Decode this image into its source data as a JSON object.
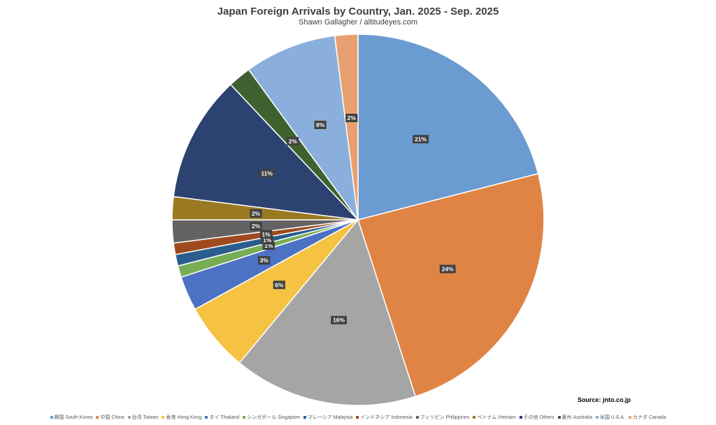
{
  "chart_data": {
    "type": "pie",
    "title": "Japan Foreign Arrivals by Country, Jan. 2025 - Sep. 2025",
    "subtitle": "Shawn Gallagher / altitudeyes.com",
    "source": "Source:  jnto.co.jp",
    "slices": [
      {
        "legend": "韓国 South Korea",
        "value": 21,
        "label": "21%",
        "color": "#6A9BD1"
      },
      {
        "legend": "中国 China",
        "value": 24,
        "label": "24%",
        "color": "#E08445"
      },
      {
        "legend": "台湾 Taiwan",
        "value": 16,
        "label": "16%",
        "color": "#A5A5A5"
      },
      {
        "legend": "香港 Hong Kong",
        "value": 6,
        "label": "6%",
        "color": "#F5C242"
      },
      {
        "legend": "タイ Thailand",
        "value": 3,
        "label": "3%",
        "color": "#4C72C4"
      },
      {
        "legend": "シンガポール Singapore",
        "value": 1,
        "label": "1%",
        "color": "#77AD55"
      },
      {
        "legend": "マレーシア Malaysia",
        "value": 1,
        "label": "1%",
        "color": "#2A5C8E"
      },
      {
        "legend": "インドネシア Indonesia",
        "value": 1,
        "label": "1%",
        "color": "#9E4A1E"
      },
      {
        "legend": "フィリピン Philippines",
        "value": 2,
        "label": "2%",
        "color": "#636363"
      },
      {
        "legend": "ベトナム Vietnam",
        "value": 2,
        "label": "2%",
        "color": "#997A22"
      },
      {
        "legend": "その他 Others",
        "value": 11,
        "label": "11%",
        "color": "#2C4270"
      },
      {
        "legend": "豪州 Australia",
        "value": 2,
        "label": "2%",
        "color": "#3F6130"
      },
      {
        "legend": "米国 U.S.A.",
        "value": 8,
        "label": "8%",
        "color": "#8AAFDC"
      },
      {
        "legend": "カナダ Canada",
        "value": 2,
        "label": "2%",
        "color": "#E8A070"
      }
    ],
    "legend_position": "bottom"
  }
}
